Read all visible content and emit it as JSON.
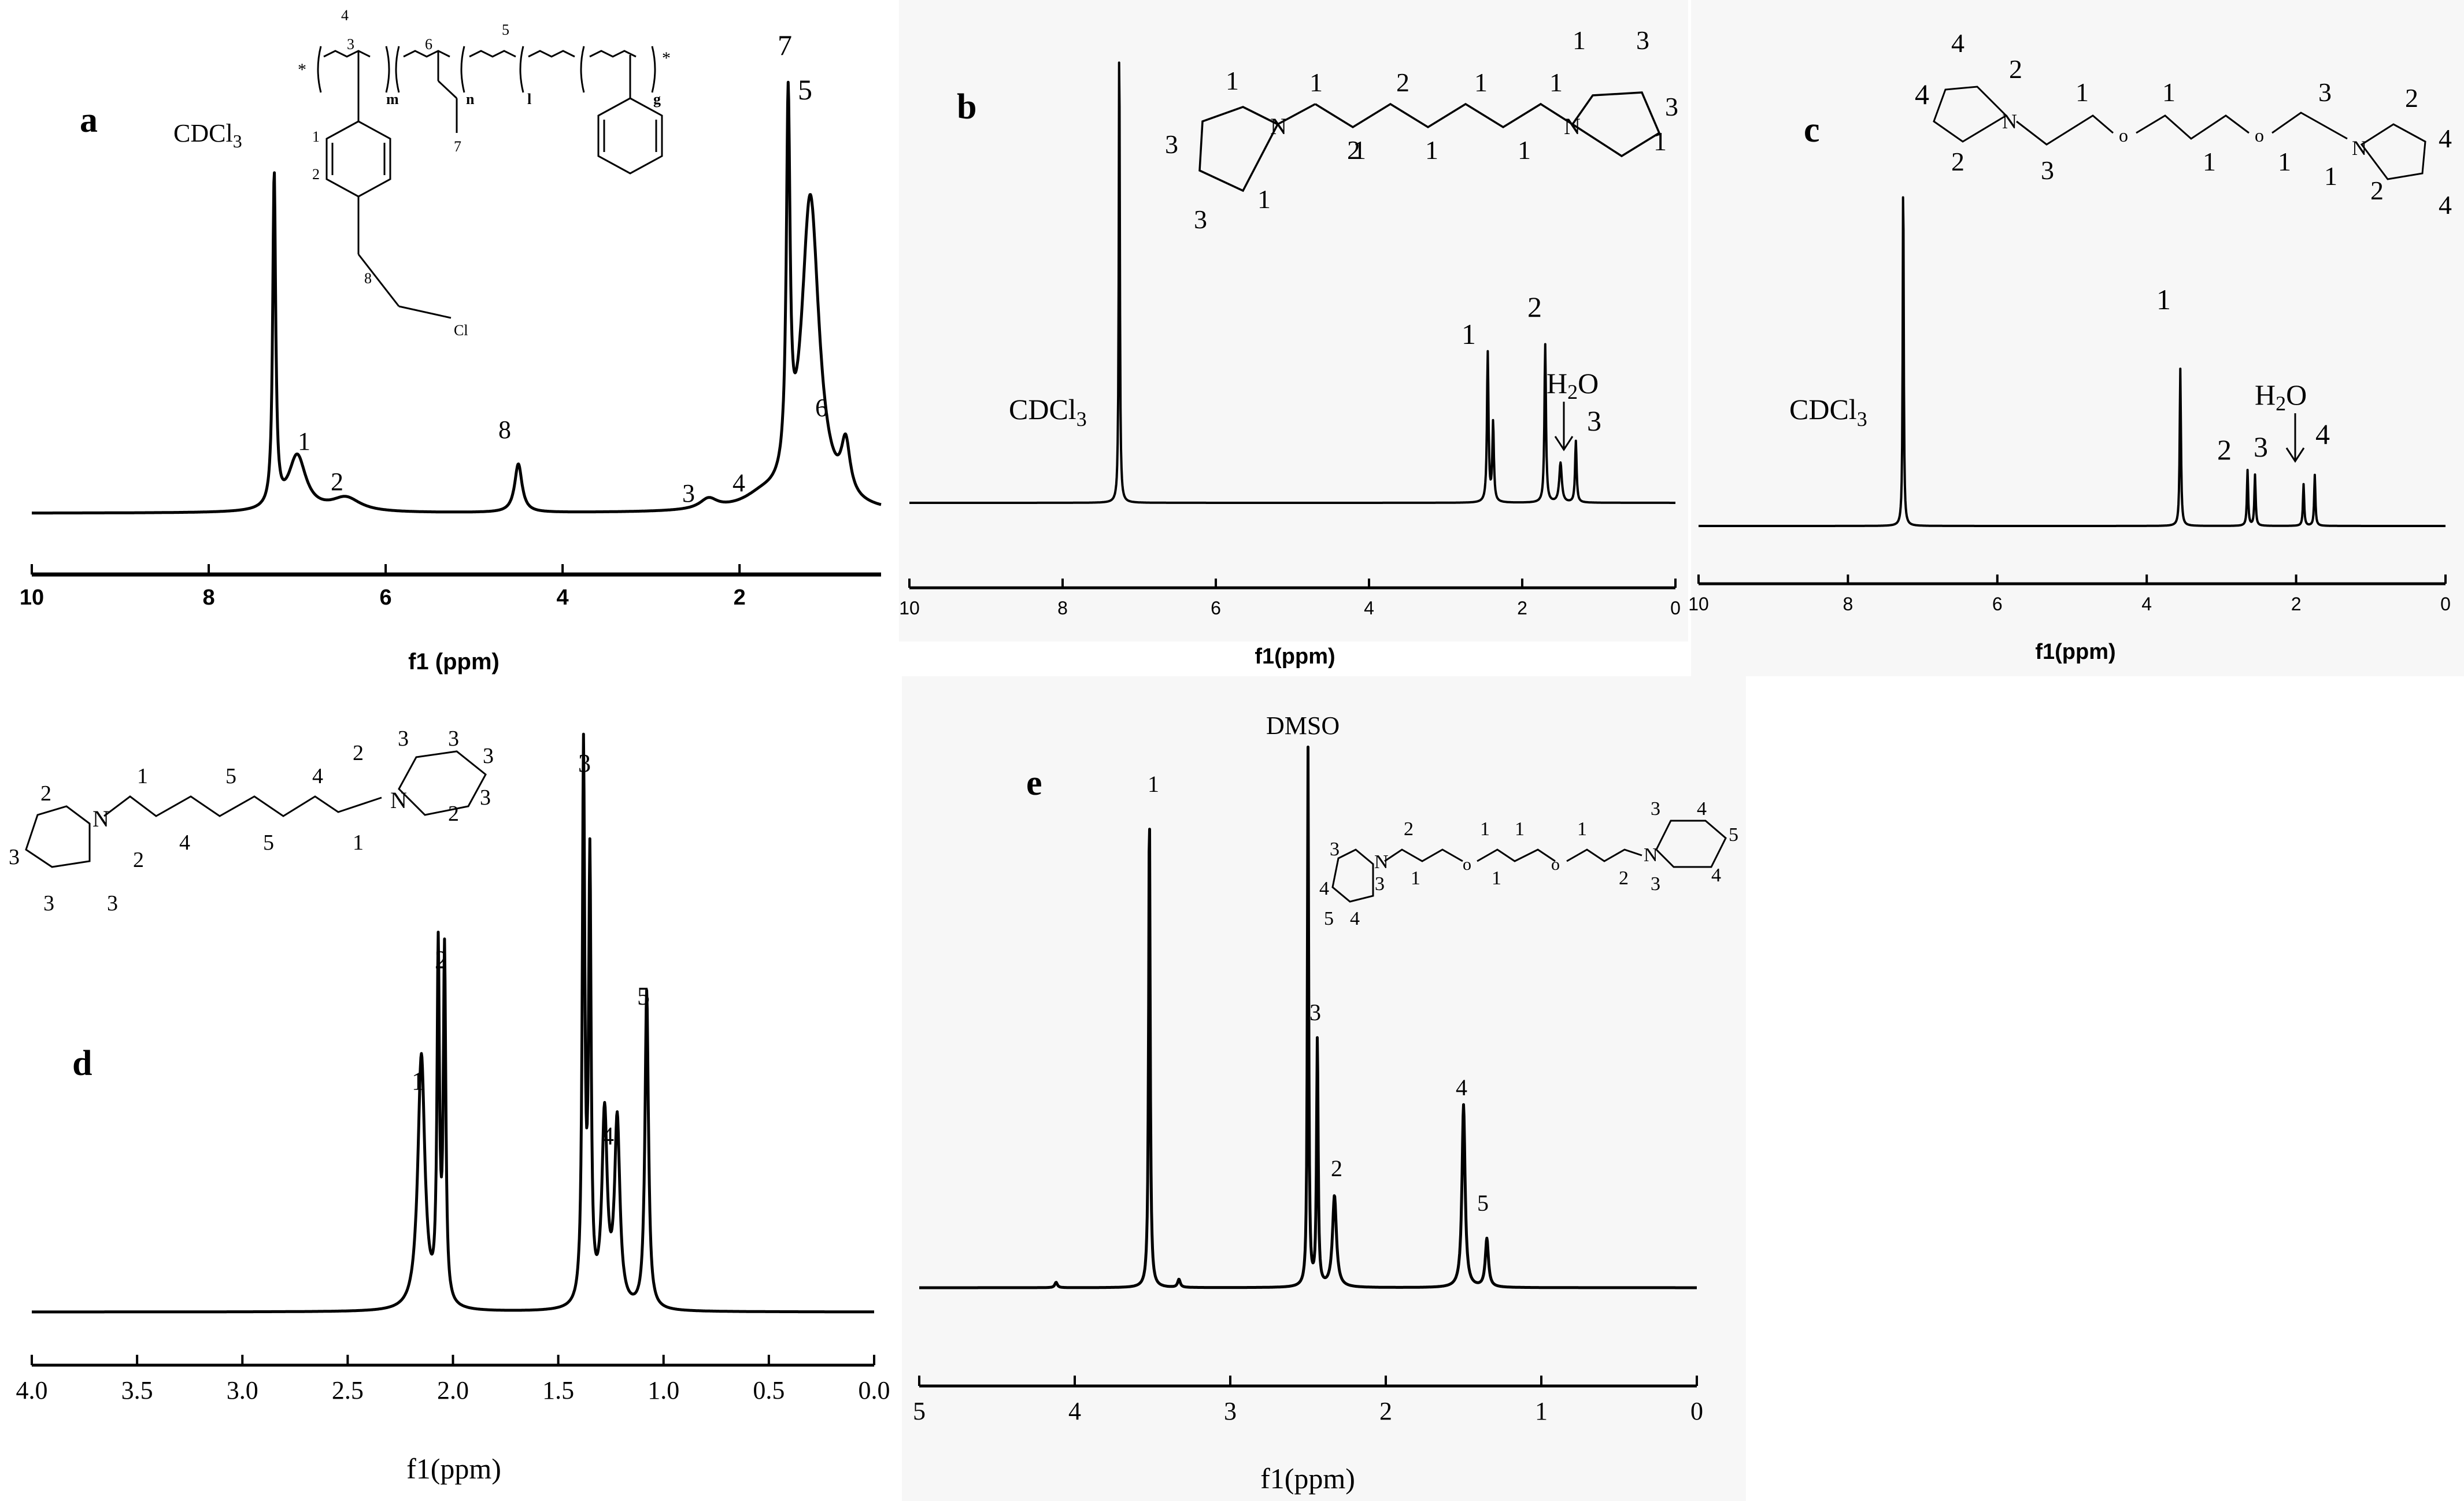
{
  "figure": {
    "panels": [
      {
        "label": "a",
        "xlabel": "f1 (ppm)",
        "xlim": [
          10,
          0.4
        ],
        "ticks": [
          "10",
          "8",
          "6",
          "4",
          "2"
        ],
        "peak_labels": [
          {
            "text": "CDCl3",
            "x": 7.26
          },
          {
            "text": "1",
            "x": 7.0
          },
          {
            "text": "2",
            "x": 6.45
          },
          {
            "text": "8",
            "x": 4.5
          },
          {
            "text": "3",
            "x": 2.35
          },
          {
            "text": "4",
            "x": 1.75
          },
          {
            "text": "7",
            "x": 1.45
          },
          {
            "text": "5",
            "x": 1.2
          },
          {
            "text": "6",
            "x": 0.8
          }
        ],
        "structure_labels": [
          "4",
          "3",
          "6",
          "5",
          "m",
          "n",
          "l",
          "g",
          "1",
          "2",
          "7",
          "8",
          "Cl"
        ]
      },
      {
        "label": "b",
        "xlabel": "f1(ppm)",
        "xlim": [
          10,
          0
        ],
        "ticks": [
          "10",
          "8",
          "6",
          "4",
          "2",
          "0"
        ],
        "peak_labels": [
          {
            "text": "CDCl3",
            "x": 7.26
          },
          {
            "text": "1",
            "x": 2.45
          },
          {
            "text": "2",
            "x": 1.7
          },
          {
            "text": "H2O",
            "x": 1.5
          },
          {
            "text": "3",
            "x": 1.3
          }
        ],
        "structure_labels": [
          "1",
          "1",
          "2",
          "1",
          "1",
          "1",
          "3",
          "3",
          "1",
          "3",
          "1",
          "2",
          "1",
          "1",
          "3",
          "1"
        ]
      },
      {
        "label": "c",
        "xlabel": "f1(ppm)",
        "xlim": [
          10,
          0
        ],
        "ticks": [
          "10",
          "8",
          "6",
          "4",
          "2",
          "0"
        ],
        "peak_labels": [
          {
            "text": "4",
            "x": 7.26
          },
          {
            "text": "CDCl3",
            "x": 7.26
          },
          {
            "text": "1",
            "x": 3.55
          },
          {
            "text": "2",
            "x": 2.65
          },
          {
            "text": "3",
            "x": 2.55
          },
          {
            "text": "H2O",
            "x": 1.9
          },
          {
            "text": "4",
            "x": 1.75
          }
        ],
        "structure_labels": [
          "4",
          "2",
          "2",
          "3",
          "1",
          "1",
          "1",
          "1",
          "3",
          "1",
          "2",
          "4",
          "2",
          "4",
          "o",
          "o"
        ]
      },
      {
        "label": "d",
        "xlabel": "f1(ppm)",
        "xlim": [
          4.0,
          0.0
        ],
        "ticks": [
          "4.0",
          "3.5",
          "3.0",
          "2.5",
          "2.0",
          "1.5",
          "1.0",
          "0.5",
          "0.0"
        ],
        "peak_labels": [
          {
            "text": "1",
            "x": 2.15
          },
          {
            "text": "2",
            "x": 2.05
          },
          {
            "text": "3",
            "x": 1.37
          },
          {
            "text": "4",
            "x": 1.27
          },
          {
            "text": "5",
            "x": 1.08
          }
        ],
        "structure_labels": [
          "1",
          "4",
          "5",
          "5",
          "4",
          "1",
          "2",
          "2",
          "3",
          "3",
          "3",
          "3",
          "2",
          "2",
          "3",
          "3",
          "3"
        ]
      },
      {
        "label": "e",
        "xlabel": "f1(ppm)",
        "xlim": [
          5,
          0
        ],
        "ticks": [
          "5",
          "4",
          "3",
          "2",
          "1",
          "0"
        ],
        "peak_labels": [
          {
            "text": "1",
            "x": 3.52
          },
          {
            "text": "DMSO",
            "x": 2.5
          },
          {
            "text": "3",
            "x": 2.43
          },
          {
            "text": "2",
            "x": 2.33
          },
          {
            "text": "4",
            "x": 1.49
          },
          {
            "text": "5",
            "x": 1.35
          }
        ],
        "structure_labels": [
          "2",
          "1",
          "1",
          "1",
          "1",
          "1",
          "2",
          "3",
          "3",
          "4",
          "3",
          "5",
          "4",
          "3",
          "4",
          "5",
          "4",
          "o",
          "o"
        ]
      }
    ]
  },
  "chart_data": [
    {
      "type": "line",
      "title": "a",
      "xlabel": "f1 (ppm)",
      "ylabel": "",
      "xlim": [
        10,
        0.4
      ],
      "ylim": [
        0,
        1
      ],
      "series": [
        {
          "peaks": [
            {
              "x": 7.26,
              "h": 0.96,
              "w": 0.02
            },
            {
              "x": 7.0,
              "h": 0.16,
              "w": 0.12
            },
            {
              "x": 6.45,
              "h": 0.04,
              "w": 0.2
            },
            {
              "x": 4.5,
              "h": 0.14,
              "w": 0.05
            },
            {
              "x": 2.35,
              "h": 0.03,
              "w": 0.12
            },
            {
              "x": 1.75,
              "h": 0.03,
              "w": 0.25
            },
            {
              "x": 1.45,
              "h": 1.06,
              "w": 0.025
            },
            {
              "x": 1.2,
              "h": 0.9,
              "w": 0.12
            },
            {
              "x": 0.8,
              "h": 0.15,
              "w": 0.06
            }
          ]
        }
      ]
    },
    {
      "type": "line",
      "title": "b",
      "xlabel": "f1(ppm)",
      "ylabel": "",
      "xlim": [
        10,
        0
      ],
      "ylim": [
        0,
        1
      ],
      "series": [
        {
          "peaks": [
            {
              "x": 7.26,
              "h": 1.1,
              "w": 0.008
            },
            {
              "x": 2.45,
              "h": 0.34,
              "w": 0.012
            },
            {
              "x": 2.38,
              "h": 0.18,
              "w": 0.012
            },
            {
              "x": 1.7,
              "h": 0.36,
              "w": 0.012
            },
            {
              "x": 1.5,
              "h": 0.09,
              "w": 0.02
            },
            {
              "x": 1.3,
              "h": 0.14,
              "w": 0.012
            }
          ]
        }
      ]
    },
    {
      "type": "line",
      "title": "c",
      "xlabel": "f1(ppm)",
      "ylabel": "",
      "xlim": [
        10,
        0
      ],
      "ylim": [
        0,
        1
      ],
      "series": [
        {
          "peaks": [
            {
              "x": 7.26,
              "h": 0.78,
              "w": 0.008
            },
            {
              "x": 3.55,
              "h": 0.34,
              "w": 0.01
            },
            {
              "x": 2.65,
              "h": 0.12,
              "w": 0.01
            },
            {
              "x": 2.55,
              "h": 0.11,
              "w": 0.01
            },
            {
              "x": 1.9,
              "h": 0.09,
              "w": 0.01
            },
            {
              "x": 1.75,
              "h": 0.11,
              "w": 0.01
            }
          ]
        }
      ]
    },
    {
      "type": "line",
      "title": "d",
      "xlabel": "f1(ppm)",
      "ylabel": "",
      "xlim": [
        4.0,
        0.0
      ],
      "ylim": [
        0,
        1
      ],
      "series": [
        {
          "peaks": [
            {
              "x": 2.15,
              "h": 0.44,
              "w": 0.02
            },
            {
              "x": 2.07,
              "h": 0.6,
              "w": 0.007
            },
            {
              "x": 2.04,
              "h": 0.6,
              "w": 0.007
            },
            {
              "x": 1.38,
              "h": 0.95,
              "w": 0.007
            },
            {
              "x": 1.35,
              "h": 0.75,
              "w": 0.007
            },
            {
              "x": 1.28,
              "h": 0.33,
              "w": 0.015
            },
            {
              "x": 1.22,
              "h": 0.32,
              "w": 0.015
            },
            {
              "x": 1.08,
              "h": 0.55,
              "w": 0.01
            }
          ]
        }
      ]
    },
    {
      "type": "line",
      "title": "e",
      "xlabel": "f1(ppm)",
      "ylabel": "",
      "xlim": [
        5,
        0
      ],
      "ylim": [
        0,
        1
      ],
      "series": [
        {
          "peaks": [
            {
              "x": 4.12,
              "h": 0.01,
              "w": 0.01
            },
            {
              "x": 3.52,
              "h": 0.89,
              "w": 0.006
            },
            {
              "x": 3.33,
              "h": 0.015,
              "w": 0.01
            },
            {
              "x": 2.5,
              "h": 1.0,
              "w": 0.005
            },
            {
              "x": 2.44,
              "h": 0.46,
              "w": 0.006
            },
            {
              "x": 2.33,
              "h": 0.17,
              "w": 0.015
            },
            {
              "x": 1.5,
              "h": 0.34,
              "w": 0.012
            },
            {
              "x": 1.35,
              "h": 0.09,
              "w": 0.012
            }
          ]
        }
      ]
    }
  ]
}
